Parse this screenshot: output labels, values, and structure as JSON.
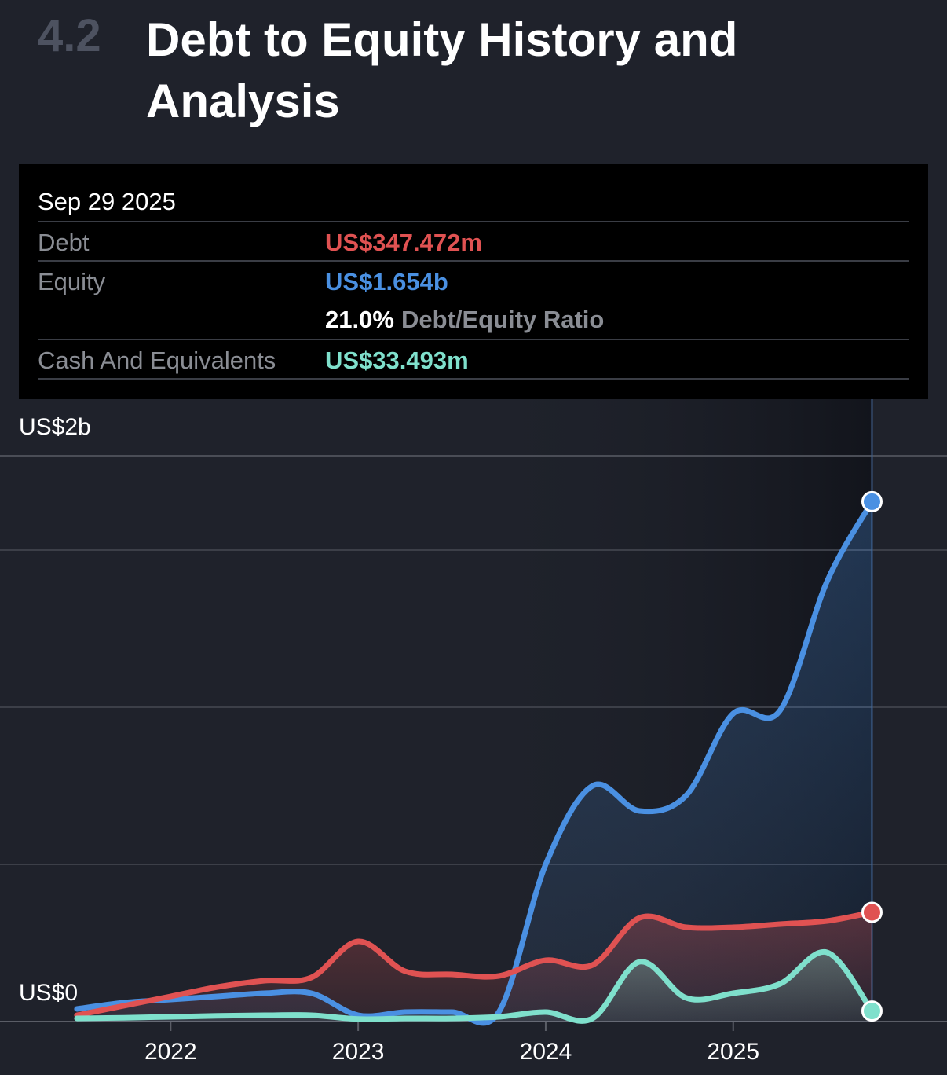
{
  "section_number": "4.2",
  "title": "Debt to Equity History and Analysis",
  "tooltip": {
    "date": "Sep 29 2025",
    "rows": [
      {
        "label": "Debt",
        "value": "US$347.472m"
      },
      {
        "label": "Equity",
        "value": "US$1.654b"
      },
      {
        "value": "21.0%",
        "label": "Debt/Equity Ratio"
      },
      {
        "label": "Cash And Equivalents",
        "value": "US$33.493m"
      }
    ]
  },
  "chart_data": {
    "type": "line",
    "x": [
      2021.5,
      2021.75,
      2022.0,
      2022.25,
      2022.5,
      2022.75,
      2023.0,
      2023.25,
      2023.5,
      2023.75,
      2024.0,
      2024.25,
      2024.5,
      2024.75,
      2025.0,
      2025.25,
      2025.5,
      2025.74
    ],
    "xlim": [
      2021.09,
      2026.14
    ],
    "xticks": [
      2022,
      2023,
      2024,
      2025
    ],
    "ylim": [
      0,
      2
    ],
    "yticks": [
      {
        "value": 0,
        "label": "US$0"
      },
      {
        "value": 2,
        "label": "US$2b"
      }
    ],
    "gridlines": [
      0,
      0.5,
      1,
      1.5
    ],
    "series": [
      {
        "name": "Equity",
        "color": "#4a90e2",
        "values": [
          0.04,
          0.06,
          0.07,
          0.08,
          0.09,
          0.09,
          0.02,
          0.03,
          0.03,
          0.03,
          0.5,
          0.75,
          0.67,
          0.72,
          0.98,
          0.99,
          1.4,
          1.654
        ]
      },
      {
        "name": "Debt",
        "color": "#e05252",
        "values": [
          0.02,
          0.05,
          0.08,
          0.11,
          0.13,
          0.14,
          0.255,
          0.16,
          0.15,
          0.145,
          0.195,
          0.18,
          0.33,
          0.3,
          0.3,
          0.31,
          0.32,
          0.347472
        ]
      },
      {
        "name": "Cash And Equivalents",
        "color": "#7fe0cc",
        "values": [
          0.01,
          0.012,
          0.015,
          0.018,
          0.02,
          0.02,
          0.008,
          0.01,
          0.01,
          0.015,
          0.03,
          0.01,
          0.19,
          0.075,
          0.09,
          0.12,
          0.22,
          0.033493
        ]
      }
    ]
  }
}
